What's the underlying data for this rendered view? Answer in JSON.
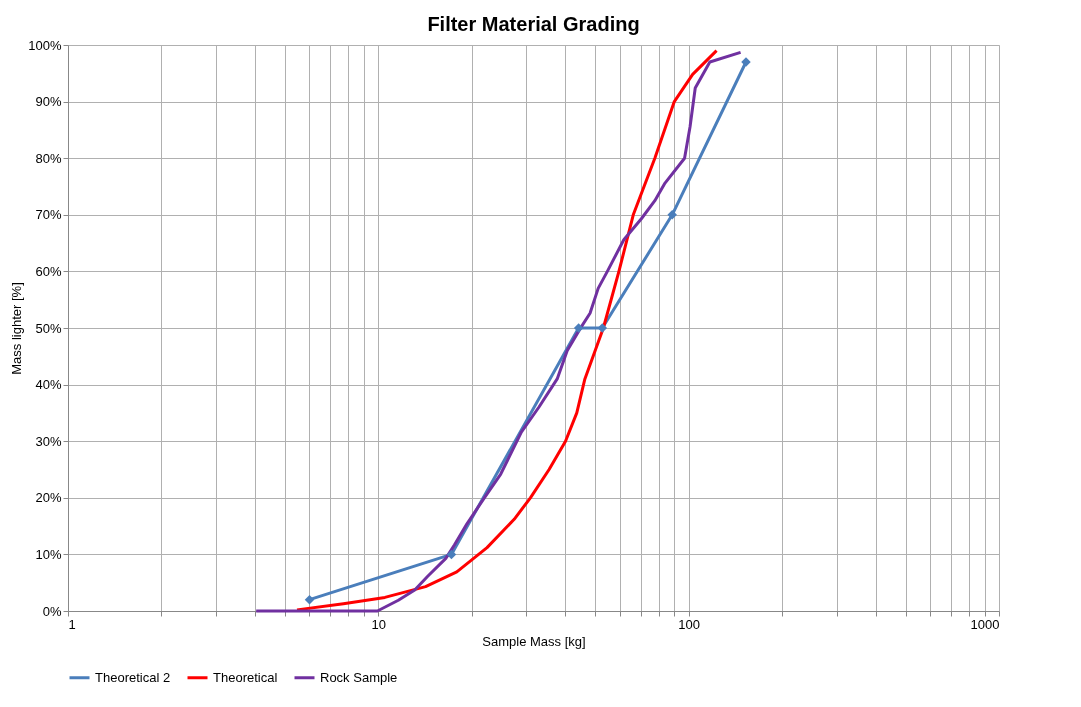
{
  "chart_data": {
    "type": "line",
    "title": "Filter Material Grading",
    "xlabel": "Sample Mass [kg]",
    "ylabel": "Mass lighter [%]",
    "log": "x",
    "grid": true,
    "legend": "bottom",
    "line_style": "solid",
    "xlim": [
      1,
      1000
    ],
    "xticks": [
      1,
      {
        "value": 2,
        "label": null
      },
      {
        "value": 3,
        "label": null
      },
      {
        "value": 4,
        "label": null
      },
      {
        "value": 5,
        "label": null
      },
      {
        "value": 6,
        "label": null
      },
      {
        "value": 7,
        "label": null
      },
      {
        "value": 8,
        "label": null
      },
      {
        "value": 9,
        "label": null
      },
      10,
      {
        "value": 20,
        "label": null
      },
      {
        "value": 30,
        "label": null
      },
      {
        "value": 40,
        "label": null
      },
      {
        "value": 50,
        "label": null
      },
      {
        "value": 60,
        "label": null
      },
      {
        "value": 70,
        "label": null
      },
      {
        "value": 80,
        "label": null
      },
      {
        "value": 90,
        "label": null
      },
      100,
      {
        "value": 200,
        "label": null
      },
      {
        "value": 300,
        "label": null
      },
      {
        "value": 400,
        "label": null
      },
      {
        "value": 500,
        "label": null
      },
      {
        "value": 600,
        "label": null
      },
      {
        "value": 700,
        "label": null
      },
      {
        "value": 800,
        "label": null
      },
      {
        "value": 900,
        "label": null
      },
      1000
    ],
    "ylim": [
      0,
      100
    ],
    "yticks": [
      {
        "value": 0,
        "label": "0%"
      },
      {
        "value": 10,
        "label": "10%"
      },
      {
        "value": 20,
        "label": "20%"
      },
      {
        "value": 30,
        "label": "30%"
      },
      {
        "value": 40,
        "label": "40%"
      },
      {
        "value": 50,
        "label": "50%"
      },
      {
        "value": 60,
        "label": "60%"
      },
      {
        "value": 70,
        "label": "70%"
      },
      {
        "value": 80,
        "label": "80%"
      },
      {
        "value": 90,
        "label": "90%"
      },
      {
        "value": 100,
        "label": "100%"
      }
    ],
    "series": [
      {
        "name": "Theoretical 2",
        "color": "#4a7ebb",
        "marker": "diamond",
        "x": [
          6.0,
          17.2,
          44.2,
          52.7,
          88.5,
          153
        ],
        "values": [
          2,
          10,
          50,
          50,
          70,
          97
        ]
      },
      {
        "name": "Theoretical",
        "color": "#ff0000",
        "marker": "none",
        "x": [
          5.47,
          7.72,
          10.5,
          14.2,
          17.9,
          22.4,
          27.4,
          30.9,
          35.5,
          40.1,
          43.6,
          46.3,
          53.1,
          59.6,
          66.3,
          77.8,
          89.9,
          103,
          123
        ],
        "values": [
          0.2,
          1.3,
          2.4,
          4.3,
          6.9,
          11.2,
          16.2,
          20,
          25,
          30,
          35,
          41,
          50,
          60,
          70,
          80,
          90,
          94.8,
          99
        ]
      },
      {
        "name": "Rock Sample",
        "color": "#7030a0",
        "marker": "none",
        "x": [
          4.04,
          9.93,
          11.6,
          13.1,
          14.4,
          16.5,
          17.6,
          19.3,
          21.9,
          24.8,
          28.9,
          32.9,
          37.7,
          40.6,
          44.6,
          48.1,
          51.1,
          54.7,
          61.8,
          70.4,
          77.8,
          83.9,
          97.0,
          101,
          105,
          117,
          147
        ],
        "values": [
          0,
          0,
          1.9,
          3.7,
          6.1,
          9.3,
          11.7,
          15.4,
          19.9,
          24.2,
          31.6,
          36,
          41,
          46,
          49.8,
          52.6,
          57,
          60,
          65.6,
          69.3,
          72.5,
          75.6,
          80,
          85.5,
          92.4,
          97,
          98.7
        ]
      }
    ]
  }
}
